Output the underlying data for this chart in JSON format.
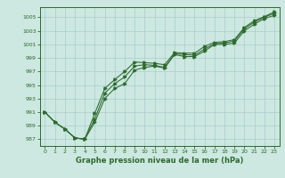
{
  "x": [
    0,
    1,
    2,
    3,
    4,
    5,
    6,
    7,
    8,
    9,
    10,
    11,
    12,
    13,
    14,
    15,
    16,
    17,
    18,
    19,
    20,
    21,
    22,
    23
  ],
  "series1": [
    991.0,
    989.5,
    988.5,
    987.2,
    987.0,
    989.5,
    993.0,
    994.5,
    995.2,
    997.2,
    997.6,
    997.8,
    997.5,
    999.5,
    999.2,
    999.2,
    1000.0,
    1001.0,
    1001.0,
    1001.2,
    1003.0,
    1004.0,
    1004.8,
    1005.3
  ],
  "series2": [
    991.0,
    989.5,
    988.5,
    987.2,
    987.0,
    990.0,
    993.8,
    995.2,
    996.2,
    997.8,
    998.0,
    997.9,
    997.6,
    999.6,
    999.5,
    999.4,
    1000.3,
    1001.1,
    1001.2,
    1001.5,
    1003.3,
    1004.3,
    1005.0,
    1005.6
  ],
  "series3": [
    991.0,
    989.5,
    988.5,
    987.2,
    987.0,
    990.8,
    994.5,
    995.8,
    997.0,
    998.4,
    998.3,
    998.2,
    998.0,
    999.8,
    999.7,
    999.7,
    1000.7,
    1001.3,
    1001.4,
    1001.7,
    1003.5,
    1004.5,
    1005.1,
    1005.8
  ],
  "line_color": "#2d6a2d",
  "bg_color": "#cce8e0",
  "grid_color": "#aacccc",
  "text_color": "#2d6a2d",
  "xlabel": "Graphe pression niveau de la mer (hPa)",
  "ylim_min": 986,
  "ylim_max": 1006.5,
  "yticks": [
    987,
    989,
    991,
    993,
    995,
    997,
    999,
    1001,
    1003,
    1005
  ],
  "xticks": [
    0,
    1,
    2,
    3,
    4,
    5,
    6,
    7,
    8,
    9,
    10,
    11,
    12,
    13,
    14,
    15,
    16,
    17,
    18,
    19,
    20,
    21,
    22,
    23
  ]
}
